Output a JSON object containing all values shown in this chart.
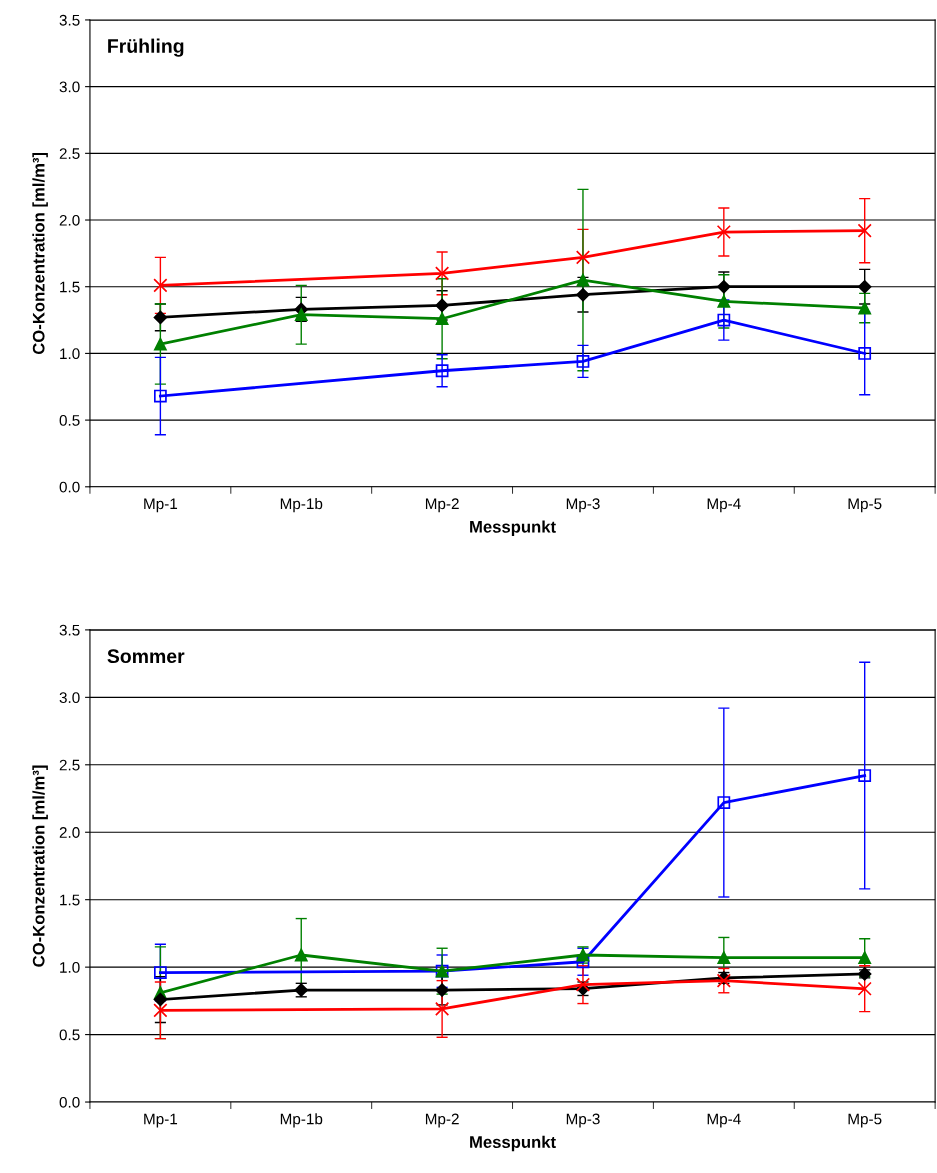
{
  "chart_data": [
    {
      "type": "line",
      "title": "Frühling",
      "xlabel": "Messpunkt",
      "ylabel": "CO-Konzentration [ml/m³]",
      "categories": [
        "Mp-1",
        "Mp-1b",
        "Mp-2",
        "Mp-3",
        "Mp-4",
        "Mp-5"
      ],
      "ylim": [
        0,
        3.5
      ],
      "yticks": [
        {
          "value": 0,
          "label": "0.0"
        },
        {
          "value": 0.5,
          "label": "0.5"
        },
        {
          "value": 1,
          "label": "1.0"
        },
        {
          "value": 1.5,
          "label": "1.5"
        },
        {
          "value": 2,
          "label": "2.0"
        },
        {
          "value": 2.5,
          "label": "2.5"
        },
        {
          "value": 3,
          "label": "3.0"
        },
        {
          "value": 3.5,
          "label": "3.5"
        }
      ],
      "grid": "y",
      "series": [
        {
          "color": "#ff0000",
          "marker": "cross",
          "values": [
            1.51,
            null,
            1.6,
            1.72,
            1.91,
            1.92
          ],
          "errors": [
            0.21,
            null,
            0.16,
            0.21,
            0.18,
            0.24
          ]
        },
        {
          "color": "#000000",
          "marker": "diamond",
          "values": [
            1.27,
            1.33,
            1.36,
            1.44,
            1.5,
            1.5
          ],
          "errors": [
            0.1,
            0.09,
            0.11,
            0.13,
            0.11,
            0.13
          ]
        },
        {
          "color": "#008000",
          "marker": "triangle",
          "values": [
            1.07,
            1.29,
            1.26,
            1.55,
            1.39,
            1.34
          ],
          "errors": [
            0.3,
            0.22,
            0.3,
            0.68,
            0.2,
            0.11
          ]
        },
        {
          "color": "#0000ff",
          "marker": "square",
          "values": [
            0.68,
            null,
            0.87,
            0.94,
            1.25,
            1.0
          ],
          "errors": [
            0.29,
            null,
            0.12,
            0.12,
            0.15,
            0.31
          ]
        }
      ]
    },
    {
      "type": "line",
      "title": "Sommer",
      "xlabel": "Messpunkt",
      "ylabel": "CO-Konzentration [ml/m³]",
      "categories": [
        "Mp-1",
        "Mp-1b",
        "Mp-2",
        "Mp-3",
        "Mp-4",
        "Mp-5"
      ],
      "ylim": [
        0,
        3.5
      ],
      "yticks": [
        {
          "value": 0,
          "label": "0.0"
        },
        {
          "value": 0.5,
          "label": "0.5"
        },
        {
          "value": 1,
          "label": "1.0"
        },
        {
          "value": 1.5,
          "label": "1.5"
        },
        {
          "value": 2,
          "label": "2.0"
        },
        {
          "value": 2.5,
          "label": "2.5"
        },
        {
          "value": 3,
          "label": "3.0"
        },
        {
          "value": 3.5,
          "label": "3.5"
        }
      ],
      "grid": "y",
      "series": [
        {
          "color": "#0000ff",
          "marker": "square",
          "values": [
            0.96,
            null,
            0.97,
            1.04,
            2.22,
            2.42
          ],
          "errors": [
            0.21,
            null,
            0.12,
            0.1,
            0.7,
            0.84
          ]
        },
        {
          "color": "#008000",
          "marker": "triangle",
          "values": [
            0.81,
            1.09,
            0.97,
            1.09,
            1.07,
            1.07
          ],
          "errors": [
            0.34,
            0.27,
            0.17,
            0.06,
            0.15,
            0.14
          ]
        },
        {
          "color": "#000000",
          "marker": "diamond",
          "values": [
            0.76,
            0.83,
            0.83,
            0.84,
            0.92,
            0.95
          ],
          "errors": [
            0.17,
            0.05,
            0.11,
            0.05,
            0.04,
            0.03
          ]
        },
        {
          "color": "#ff0000",
          "marker": "cross",
          "values": [
            0.68,
            null,
            0.69,
            0.87,
            0.9,
            0.84
          ],
          "errors": [
            0.21,
            null,
            0.21,
            0.14,
            0.09,
            0.17
          ]
        }
      ]
    }
  ]
}
